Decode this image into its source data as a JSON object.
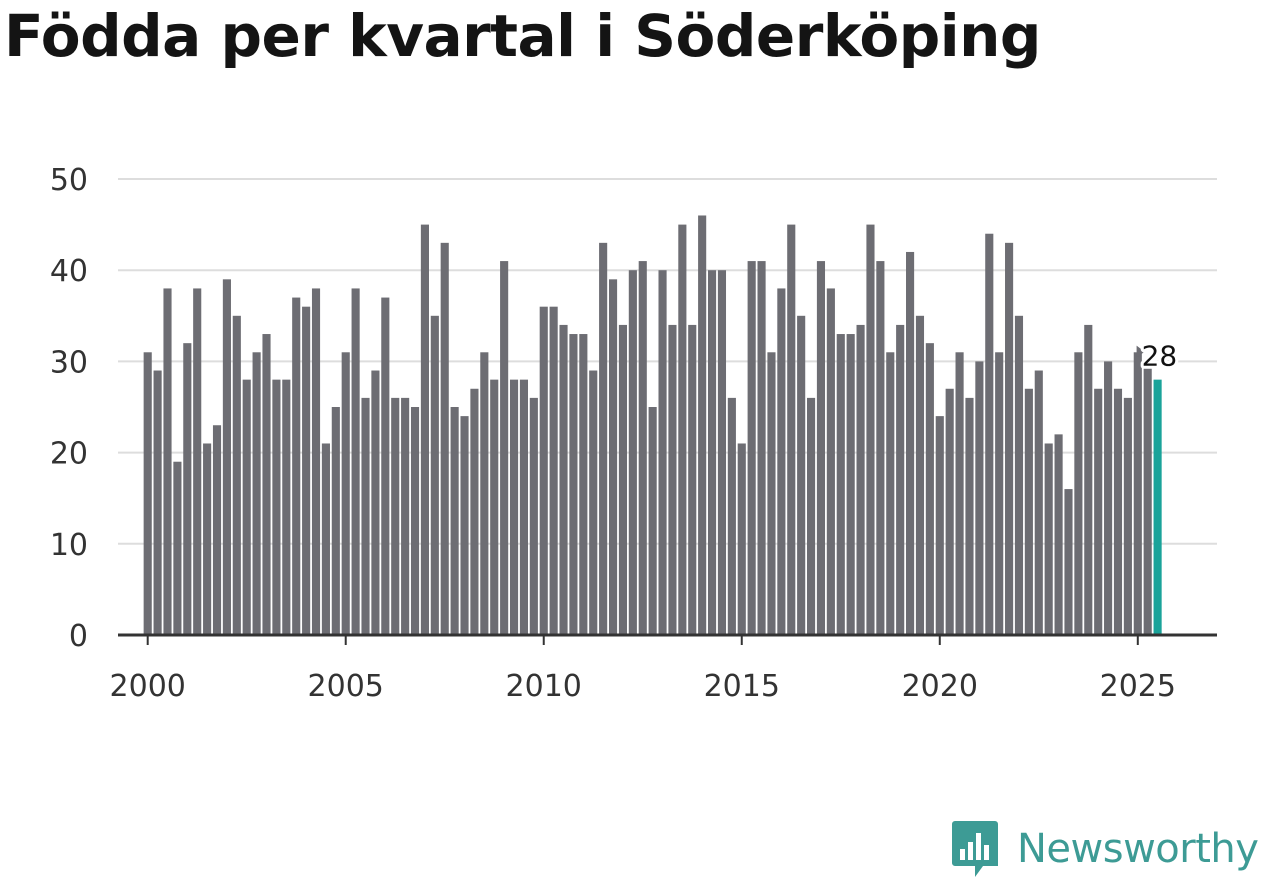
{
  "title": "Födda per kvartal i Söderköping",
  "brand": {
    "name": "Newsworthy",
    "icon": "newsworthy-logo-icon"
  },
  "colors": {
    "bar": "#6d6d73",
    "highlight": "#1aa39a",
    "grid": "#dddddd",
    "axis": "#333333",
    "brand": "#3d9b95"
  },
  "chart_data": {
    "type": "bar",
    "title": "Födda per kvartal i Söderköping",
    "xlabel": "",
    "ylabel": "",
    "ylim": [
      0,
      50
    ],
    "yticks": [
      0,
      10,
      20,
      30,
      40,
      50
    ],
    "xticks": [
      2000,
      2005,
      2010,
      2015,
      2020,
      2025
    ],
    "xlim": [
      1999.25,
      2027.0
    ],
    "grid": true,
    "start_year": 2000,
    "start_quarter": 1,
    "values": [
      31,
      29,
      38,
      19,
      32,
      38,
      21,
      23,
      39,
      35,
      28,
      31,
      33,
      28,
      28,
      37,
      36,
      38,
      21,
      25,
      31,
      38,
      26,
      29,
      37,
      26,
      26,
      25,
      45,
      35,
      43,
      25,
      24,
      27,
      31,
      28,
      41,
      28,
      28,
      26,
      36,
      36,
      34,
      33,
      33,
      29,
      43,
      39,
      34,
      40,
      41,
      25,
      40,
      34,
      45,
      34,
      46,
      40,
      40,
      26,
      21,
      41,
      41,
      31,
      38,
      45,
      35,
      26,
      41,
      38,
      33,
      33,
      34,
      45,
      41,
      31,
      34,
      42,
      35,
      32,
      24,
      27,
      31,
      26,
      30,
      44,
      31,
      43,
      35,
      27,
      29,
      21,
      22,
      16,
      31,
      34,
      27,
      30,
      27,
      26,
      31,
      30,
      28
    ],
    "highlight_last": true,
    "last_label": "28"
  }
}
